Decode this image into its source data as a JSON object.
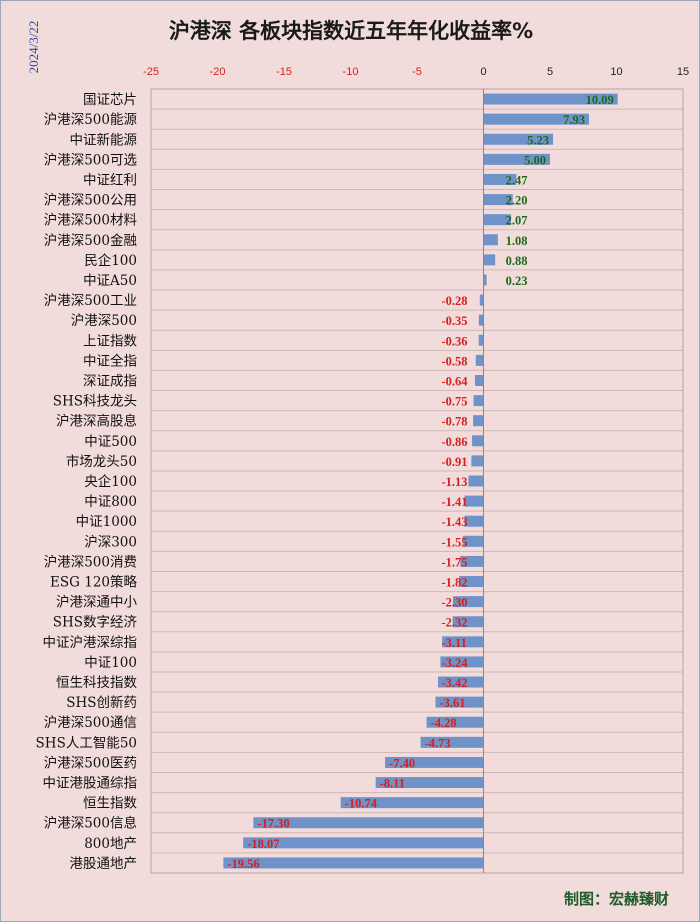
{
  "date_stamp": "2024/3/22",
  "credit": "制图：宏赫臻财",
  "colors": {
    "background": "#f2dcdb",
    "bar": "#6f93c9",
    "positive_label": "#1a6b1a",
    "negative_label": "#d61f1f",
    "tick_negative": "#d61f1f",
    "tick_positive": "#222222"
  },
  "chart_data": {
    "type": "bar",
    "orientation": "horizontal",
    "title": "沪港深 各板块指数近五年年化收益率%",
    "xlim": [
      -25,
      15
    ],
    "xticks": [
      -25,
      -20,
      -15,
      -10,
      -5,
      0,
      5,
      10,
      15
    ],
    "xtick_labels": [
      "-25",
      "-20",
      "-15",
      "-10",
      "-5",
      "0",
      "5",
      "10",
      "15"
    ],
    "xaxis_position": "top",
    "grid": true,
    "legend": "none",
    "categories": [
      "国证芯片",
      "沪港深500能源",
      "中证新能源",
      "沪港深500可选",
      "中证红利",
      "沪港深500公用",
      "沪港深500材料",
      "沪港深500金融",
      "民企100",
      "中证A50",
      "沪港深500工业",
      "沪港深500",
      "上证指数",
      "中证全指",
      "深证成指",
      "SHS科技龙头",
      "沪港深高股息",
      "中证500",
      "市场龙头50",
      "央企100",
      "中证800",
      "中证1000",
      "沪深300",
      "沪港深500消费",
      "ESG 120策略",
      "沪港深通中小",
      "SHS数字经济",
      "中证沪港深综指",
      "中证100",
      "恒生科技指数",
      "SHS创新药",
      "沪港深500通信",
      "SHS人工智能50",
      "沪港深500医药",
      "中证港股通综指",
      "恒生指数",
      "沪港深500信息",
      "800地产",
      "港股通地产"
    ],
    "values": [
      10.09,
      7.93,
      5.23,
      5.0,
      2.47,
      2.2,
      2.07,
      1.08,
      0.88,
      0.23,
      -0.28,
      -0.35,
      -0.36,
      -0.58,
      -0.64,
      -0.75,
      -0.78,
      -0.86,
      -0.91,
      -1.13,
      -1.41,
      -1.43,
      -1.55,
      -1.75,
      -1.82,
      -2.3,
      -2.32,
      -3.11,
      -3.24,
      -3.42,
      -3.61,
      -4.28,
      -4.73,
      -7.4,
      -8.11,
      -10.74,
      -17.3,
      -18.07,
      -19.56
    ],
    "value_labels": [
      "10.09",
      "7.93",
      "5.23",
      "5.00",
      "2.47",
      "2.20",
      "2.07",
      "1.08",
      "0.88",
      "0.23",
      "-0.28",
      "-0.35",
      "-0.36",
      "-0.58",
      "-0.64",
      "-0.75",
      "-0.78",
      "-0.86",
      "-0.91",
      "-1.13",
      "-1.41",
      "-1.43",
      "-1.55",
      "-1.75",
      "-1.82",
      "-2.30",
      "-2.32",
      "-3.11",
      "-3.24",
      "-3.42",
      "-3.61",
      "-4.28",
      "-4.73",
      "-7.40",
      "-8.11",
      "-10.74",
      "-17.30",
      "-18.07",
      "-19.56"
    ]
  }
}
